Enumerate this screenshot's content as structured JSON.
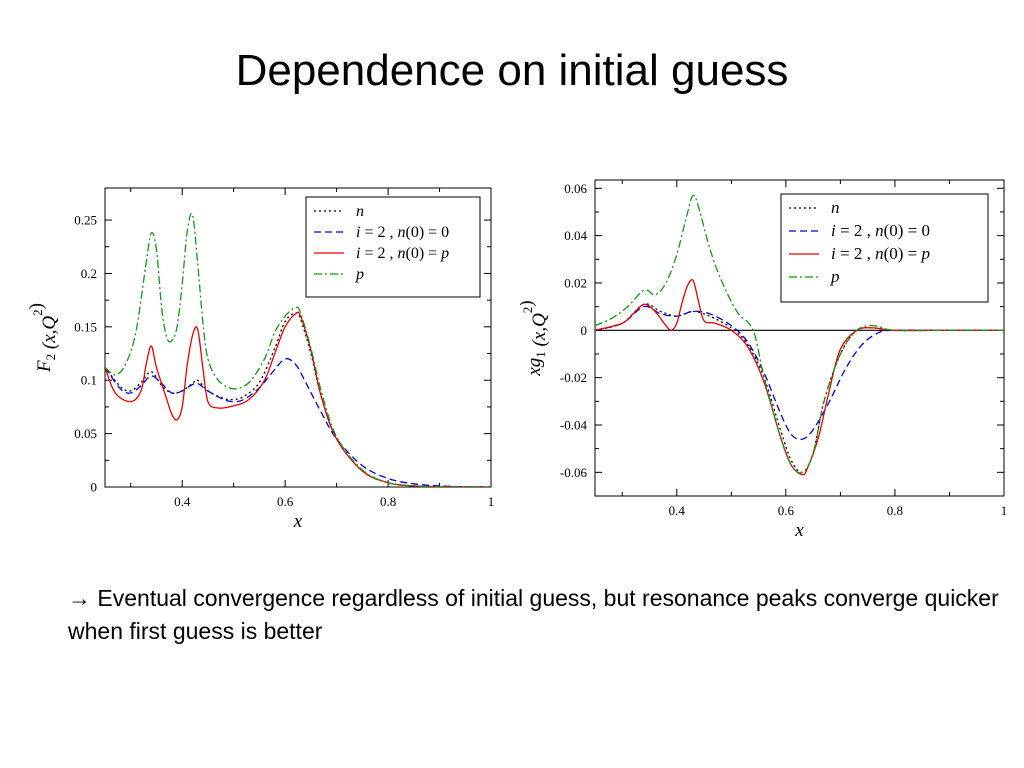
{
  "slide": {
    "title": "Dependence on initial guess",
    "caption": "→ Eventual convergence regardless of initial guess, but resonance peaks converge quicker when first guess is better"
  },
  "chart_data": [
    {
      "type": "line",
      "xlabel": "x",
      "ylabel_main": "F",
      "ylabel_sub": "2",
      "ylabel_args": " (x,Q",
      "ylabel_sup": "2",
      "ylabel_close": ")",
      "xlim": [
        0.25,
        1.0
      ],
      "ylim": [
        0,
        0.28
      ],
      "xticks": [
        0.4,
        0.6,
        0.8,
        1
      ],
      "xtick_labels": [
        "0.4",
        "0.6",
        "0.8",
        "1"
      ],
      "yticks": [
        0,
        0.05,
        0.1,
        0.15,
        0.2,
        0.25
      ],
      "ytick_labels": [
        "0",
        "0.05",
        "0.1",
        "0.15",
        "0.2",
        "0.25"
      ],
      "zero_line": false,
      "legend_position": "top-right",
      "legend": [
        {
          "pre": "",
          "label": "n",
          "color": "#000000",
          "dash": "2,3"
        },
        {
          "pre": "",
          "label": "i = 2 , n(0) = 0",
          "color": "#0000dd",
          "dash": "7,4"
        },
        {
          "pre": "",
          "label": "i = 2 , n(0) = p",
          "color": "#ee0000",
          "dash": ""
        },
        {
          "pre": "",
          "label": "p",
          "color": "#119911",
          "dash": "8,3,2,3"
        }
      ],
      "series": [
        {
          "name": "n",
          "color": "#000000",
          "dash": "2,3",
          "x": [
            0.25,
            0.28,
            0.3,
            0.32,
            0.34,
            0.36,
            0.38,
            0.4,
            0.42,
            0.43,
            0.45,
            0.48,
            0.5,
            0.52,
            0.55,
            0.58,
            0.6,
            0.62,
            0.63,
            0.65,
            0.67,
            0.7,
            0.75,
            0.8,
            0.85,
            0.9,
            0.95,
            1.0
          ],
          "y": [
            0.112,
            0.094,
            0.09,
            0.098,
            0.108,
            0.095,
            0.088,
            0.09,
            0.097,
            0.1,
            0.09,
            0.083,
            0.082,
            0.085,
            0.098,
            0.13,
            0.155,
            0.163,
            0.157,
            0.125,
            0.085,
            0.045,
            0.015,
            0.004,
            0.001,
            0.0003,
            0.0001,
            0
          ]
        },
        {
          "name": "i = 2 , n(0) = 0",
          "color": "#0000dd",
          "dash": "7,4",
          "x": [
            0.25,
            0.28,
            0.3,
            0.32,
            0.34,
            0.36,
            0.38,
            0.4,
            0.42,
            0.43,
            0.45,
            0.48,
            0.5,
            0.52,
            0.55,
            0.58,
            0.6,
            0.62,
            0.64,
            0.67,
            0.7,
            0.75,
            0.8,
            0.85,
            0.9,
            0.95,
            1.0
          ],
          "y": [
            0.112,
            0.092,
            0.088,
            0.095,
            0.104,
            0.097,
            0.088,
            0.09,
            0.096,
            0.097,
            0.09,
            0.082,
            0.08,
            0.082,
            0.093,
            0.11,
            0.12,
            0.115,
            0.098,
            0.07,
            0.045,
            0.02,
            0.008,
            0.003,
            0.001,
            0.0003,
            0
          ]
        },
        {
          "name": "i = 2 , n(0) = p",
          "color": "#ee0000",
          "dash": "",
          "x": [
            0.25,
            0.27,
            0.3,
            0.32,
            0.33,
            0.34,
            0.35,
            0.37,
            0.38,
            0.39,
            0.4,
            0.41,
            0.42,
            0.43,
            0.44,
            0.45,
            0.47,
            0.5,
            0.53,
            0.56,
            0.58,
            0.6,
            0.62,
            0.63,
            0.65,
            0.67,
            0.7,
            0.75,
            0.8,
            0.85,
            0.9,
            0.95,
            1.0
          ],
          "y": [
            0.112,
            0.088,
            0.08,
            0.09,
            0.115,
            0.132,
            0.112,
            0.082,
            0.068,
            0.063,
            0.075,
            0.115,
            0.142,
            0.148,
            0.112,
            0.08,
            0.074,
            0.076,
            0.082,
            0.1,
            0.125,
            0.15,
            0.162,
            0.16,
            0.128,
            0.085,
            0.045,
            0.015,
            0.004,
            0.001,
            0.0003,
            0.0001,
            0
          ]
        },
        {
          "name": "p",
          "color": "#119911",
          "dash": "8,3,2,3",
          "x": [
            0.25,
            0.27,
            0.29,
            0.31,
            0.33,
            0.34,
            0.35,
            0.36,
            0.37,
            0.38,
            0.39,
            0.4,
            0.41,
            0.42,
            0.43,
            0.44,
            0.45,
            0.47,
            0.5,
            0.53,
            0.56,
            0.58,
            0.6,
            0.62,
            0.63,
            0.65,
            0.67,
            0.7,
            0.75,
            0.8,
            0.85,
            0.9,
            0.95,
            1.0
          ],
          "y": [
            0.112,
            0.105,
            0.115,
            0.145,
            0.21,
            0.238,
            0.222,
            0.168,
            0.14,
            0.137,
            0.15,
            0.19,
            0.24,
            0.255,
            0.21,
            0.155,
            0.12,
            0.1,
            0.092,
            0.098,
            0.12,
            0.145,
            0.16,
            0.168,
            0.163,
            0.13,
            0.09,
            0.047,
            0.016,
            0.004,
            0.001,
            0.0003,
            0.0001,
            0
          ]
        }
      ]
    },
    {
      "type": "line",
      "xlabel": "x",
      "ylabel_main": "xg",
      "ylabel_sub": "1",
      "ylabel_args": " (x,Q",
      "ylabel_sup": "2",
      "ylabel_close": ")",
      "xlim": [
        0.25,
        1.0
      ],
      "ylim": [
        -0.07,
        0.0635
      ],
      "xticks": [
        0.4,
        0.6,
        0.8,
        1
      ],
      "xtick_labels": [
        "0.4",
        "0.6",
        "0.8",
        "1"
      ],
      "yticks": [
        -0.06,
        -0.04,
        -0.02,
        0,
        0.02,
        0.04,
        0.06
      ],
      "ytick_labels": [
        "-0.06",
        "-0.04",
        "-0.02",
        "0",
        "0.02",
        "0.04",
        "0.06"
      ],
      "zero_line": true,
      "legend_position": "top-right",
      "legend": [
        {
          "label": "n",
          "color": "#000000",
          "dash": "2,3"
        },
        {
          "label": "i = 2 ,  n(0) = 0",
          "color": "#0000dd",
          "dash": "7,4"
        },
        {
          "label": "i = 2 ,  n(0) = p",
          "color": "#ee0000",
          "dash": ""
        },
        {
          "label": "p",
          "color": "#119911",
          "dash": "8,3,2,3"
        }
      ],
      "series": [
        {
          "name": "n",
          "color": "#000000",
          "dash": "2,3",
          "x": [
            0.25,
            0.3,
            0.34,
            0.37,
            0.4,
            0.43,
            0.46,
            0.5,
            0.53,
            0.56,
            0.59,
            0.61,
            0.63,
            0.65,
            0.67,
            0.7,
            0.73,
            0.76,
            0.8,
            0.9,
            1.0
          ],
          "y": [
            0,
            0.003,
            0.011,
            0.008,
            0.006,
            0.008,
            0.006,
            0.001,
            -0.006,
            -0.02,
            -0.042,
            -0.055,
            -0.06,
            -0.052,
            -0.03,
            -0.01,
            0,
            0.001,
            0,
            0,
            0
          ]
        },
        {
          "name": "i = 2 ,  n(0) = 0",
          "color": "#0000dd",
          "dash": "7,4",
          "x": [
            0.25,
            0.3,
            0.34,
            0.37,
            0.4,
            0.43,
            0.46,
            0.5,
            0.53,
            0.56,
            0.59,
            0.61,
            0.63,
            0.65,
            0.68,
            0.71,
            0.74,
            0.77,
            0.8,
            0.9,
            1.0
          ],
          "y": [
            0,
            0.003,
            0.01,
            0.007,
            0.006,
            0.008,
            0.007,
            0.002,
            -0.005,
            -0.018,
            -0.035,
            -0.044,
            -0.046,
            -0.042,
            -0.03,
            -0.016,
            -0.006,
            -0.001,
            0,
            0,
            0
          ]
        },
        {
          "name": "i = 2 ,  n(0) = p",
          "color": "#ee0000",
          "dash": "",
          "x": [
            0.25,
            0.3,
            0.32,
            0.34,
            0.36,
            0.38,
            0.39,
            0.4,
            0.41,
            0.42,
            0.43,
            0.44,
            0.45,
            0.47,
            0.5,
            0.53,
            0.56,
            0.59,
            0.61,
            0.63,
            0.64,
            0.66,
            0.68,
            0.7,
            0.73,
            0.76,
            0.8,
            0.9,
            1.0
          ],
          "y": [
            0,
            0.003,
            0.007,
            0.011,
            0.008,
            0.002,
            0,
            0.003,
            0.012,
            0.019,
            0.021,
            0.012,
            0.004,
            0.003,
            0,
            -0.007,
            -0.022,
            -0.045,
            -0.057,
            -0.061,
            -0.058,
            -0.045,
            -0.025,
            -0.008,
            0,
            0.001,
            0,
            0,
            0
          ]
        },
        {
          "name": "p",
          "color": "#119911",
          "dash": "8,3,2,3",
          "x": [
            0.25,
            0.28,
            0.31,
            0.34,
            0.36,
            0.38,
            0.4,
            0.42,
            0.43,
            0.44,
            0.46,
            0.48,
            0.51,
            0.54,
            0.56,
            0.59,
            0.61,
            0.63,
            0.65,
            0.67,
            0.7,
            0.73,
            0.76,
            0.8,
            0.9,
            1.0
          ],
          "y": [
            0.002,
            0.005,
            0.01,
            0.017,
            0.015,
            0.02,
            0.032,
            0.05,
            0.057,
            0.052,
            0.035,
            0.022,
            0.008,
            0,
            -0.02,
            -0.045,
            -0.057,
            -0.06,
            -0.052,
            -0.03,
            -0.01,
            0,
            0.002,
            0,
            0,
            0
          ]
        }
      ]
    }
  ]
}
